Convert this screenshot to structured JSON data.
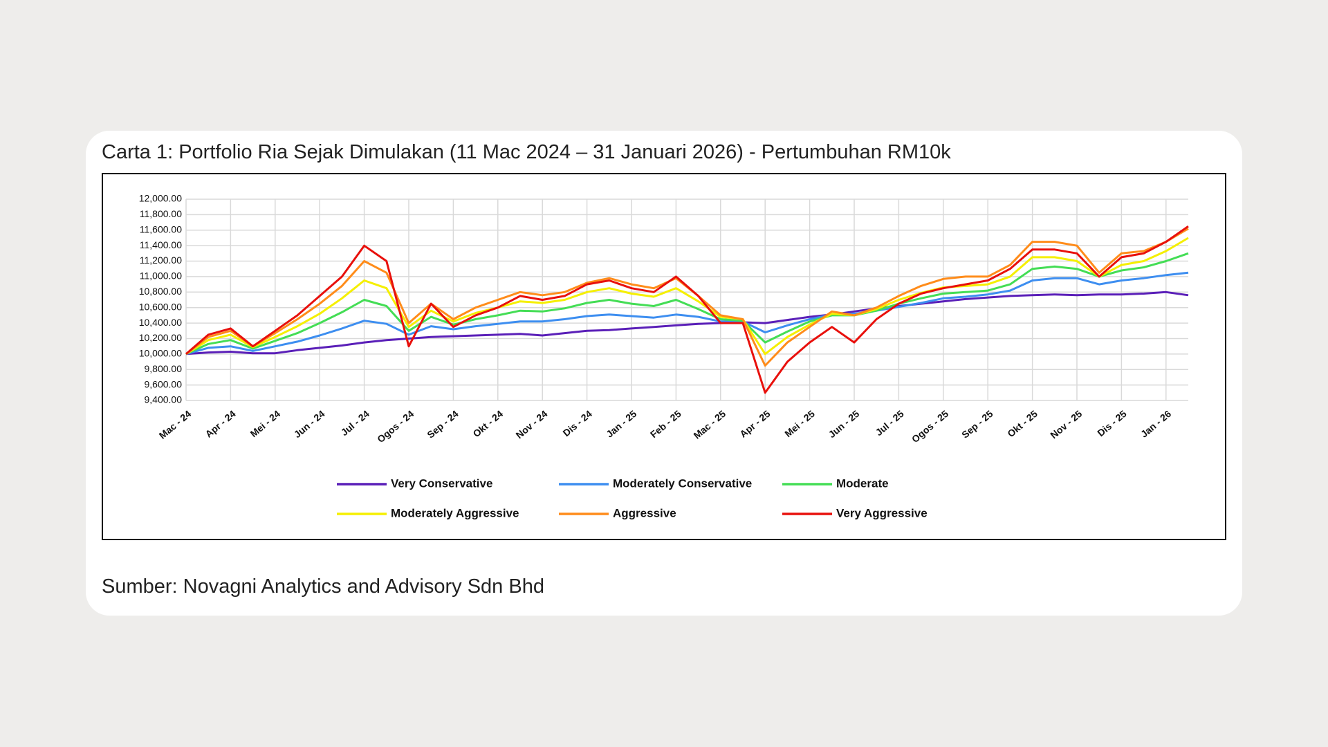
{
  "chart_data": {
    "type": "line",
    "title": "Carta 1: Portfolio Ria Sejak Dimulakan (11 Mac 2024 – 31 Januari 2026) - Pertumbuhan RM10k",
    "source": "Sumber: Novagni Analytics and Advisory Sdn Bhd",
    "grid": true,
    "categories": [
      "Mac - 24",
      null,
      "Apr - 24",
      null,
      "Mei - 24",
      null,
      "Jun - 24",
      null,
      "Jul - 24",
      null,
      "Ogos - 24",
      null,
      "Sep - 24",
      null,
      "Okt - 24",
      null,
      "Nov - 24",
      null,
      "Dis - 24",
      null,
      "Jan - 25",
      null,
      "Feb - 25",
      null,
      "Mac - 25",
      null,
      "Apr - 25",
      null,
      "Mei - 25",
      null,
      "Jun - 25",
      null,
      "Jul - 25",
      null,
      "Ogos - 25",
      null,
      "Sep - 25",
      null,
      "Okt - 25",
      null,
      "Nov - 25",
      null,
      "Dis - 25",
      null,
      "Jan - 26",
      null
    ],
    "ylim": [
      9400,
      12000
    ],
    "yticks": [
      {
        "value": 9400,
        "label": "9,400.00"
      },
      {
        "value": 9600,
        "label": "9,600.00"
      },
      {
        "value": 9800,
        "label": "9,800.00"
      },
      {
        "value": 10000,
        "label": "10,000.00"
      },
      {
        "value": 10200,
        "label": "10,200.00"
      },
      {
        "value": 10400,
        "label": "10,400.00"
      },
      {
        "value": 10600,
        "label": "10,600.00"
      },
      {
        "value": 10800,
        "label": "10,800.00"
      },
      {
        "value": 11000,
        "label": "11,000.00"
      },
      {
        "value": 11200,
        "label": "11,200.00"
      },
      {
        "value": 11400,
        "label": "11,400.00"
      },
      {
        "value": 11600,
        "label": "11,600.00"
      },
      {
        "value": 11800,
        "label": "11,800.00"
      },
      {
        "value": 12000,
        "label": "12,000.00"
      }
    ],
    "series": [
      {
        "name": "Very Conservative",
        "color": "#5a1fb8",
        "values": [
          10000,
          10020,
          10030,
          10010,
          10010,
          10050,
          10080,
          10110,
          10150,
          10180,
          10200,
          10220,
          10230,
          10240,
          10250,
          10260,
          10240,
          10270,
          10300,
          10310,
          10330,
          10350,
          10370,
          10390,
          10400,
          10410,
          10400,
          10440,
          10480,
          10510,
          10550,
          10590,
          10620,
          10650,
          10680,
          10710,
          10730,
          10750,
          10760,
          10770,
          10760,
          10770,
          10770,
          10780,
          10800,
          10760
        ]
      },
      {
        "name": "Moderately Conservative",
        "color": "#3d8ef0",
        "values": [
          10000,
          10080,
          10100,
          10040,
          10100,
          10160,
          10240,
          10330,
          10430,
          10390,
          10250,
          10360,
          10320,
          10360,
          10390,
          10420,
          10420,
          10450,
          10490,
          10510,
          10490,
          10470,
          10510,
          10480,
          10420,
          10420,
          10280,
          10370,
          10450,
          10510,
          10520,
          10560,
          10610,
          10660,
          10720,
          10740,
          10770,
          10820,
          10950,
          10980,
          10980,
          10900,
          10950,
          10980,
          11020,
          11050
        ]
      },
      {
        "name": "Moderate",
        "color": "#44dd55",
        "values": [
          10000,
          10130,
          10180,
          10070,
          10170,
          10270,
          10400,
          10540,
          10700,
          10620,
          10300,
          10480,
          10380,
          10450,
          10500,
          10560,
          10550,
          10590,
          10660,
          10700,
          10650,
          10620,
          10700,
          10580,
          10450,
          10430,
          10150,
          10290,
          10420,
          10500,
          10500,
          10560,
          10650,
          10720,
          10780,
          10800,
          10820,
          10900,
          11100,
          11130,
          11100,
          11000,
          11080,
          11120,
          11200,
          11300
        ]
      },
      {
        "name": "Moderately Aggressive",
        "color": "#f5ef00",
        "values": [
          10000,
          10180,
          10250,
          10090,
          10220,
          10360,
          10520,
          10720,
          10950,
          10850,
          10350,
          10560,
          10420,
          10530,
          10600,
          10680,
          10660,
          10700,
          10800,
          10850,
          10780,
          10740,
          10850,
          10680,
          10480,
          10450,
          10000,
          10220,
          10380,
          10520,
          10500,
          10580,
          10700,
          10790,
          10860,
          10880,
          10900,
          11000,
          11250,
          11250,
          11200,
          11000,
          11150,
          11200,
          11330,
          11500
        ]
      },
      {
        "name": "Aggressive",
        "color": "#ff8c1a",
        "values": [
          10000,
          10220,
          10300,
          10100,
          10270,
          10450,
          10650,
          10880,
          11200,
          11050,
          10400,
          10650,
          10450,
          10600,
          10700,
          10800,
          10760,
          10800,
          10920,
          10980,
          10900,
          10850,
          10980,
          10750,
          10500,
          10450,
          9850,
          10150,
          10350,
          10550,
          10500,
          10600,
          10750,
          10880,
          10970,
          11000,
          11000,
          11150,
          11450,
          11450,
          11400,
          11050,
          11300,
          11330,
          11450,
          11620
        ]
      },
      {
        "name": "Very Aggressive",
        "color": "#e8100c",
        "values": [
          10000,
          10250,
          10330,
          10100,
          10300,
          10500,
          10750,
          11000,
          11400,
          11200,
          10100,
          10650,
          10350,
          10500,
          10600,
          10750,
          10700,
          10750,
          10900,
          10950,
          10850,
          10800,
          11000,
          10750,
          10400,
          10400,
          9500,
          9900,
          10150,
          10350,
          10150,
          10450,
          10650,
          10780,
          10850,
          10900,
          10950,
          11100,
          11350,
          11350,
          11300,
          11000,
          11250,
          11300,
          11450,
          11650
        ]
      }
    ]
  }
}
